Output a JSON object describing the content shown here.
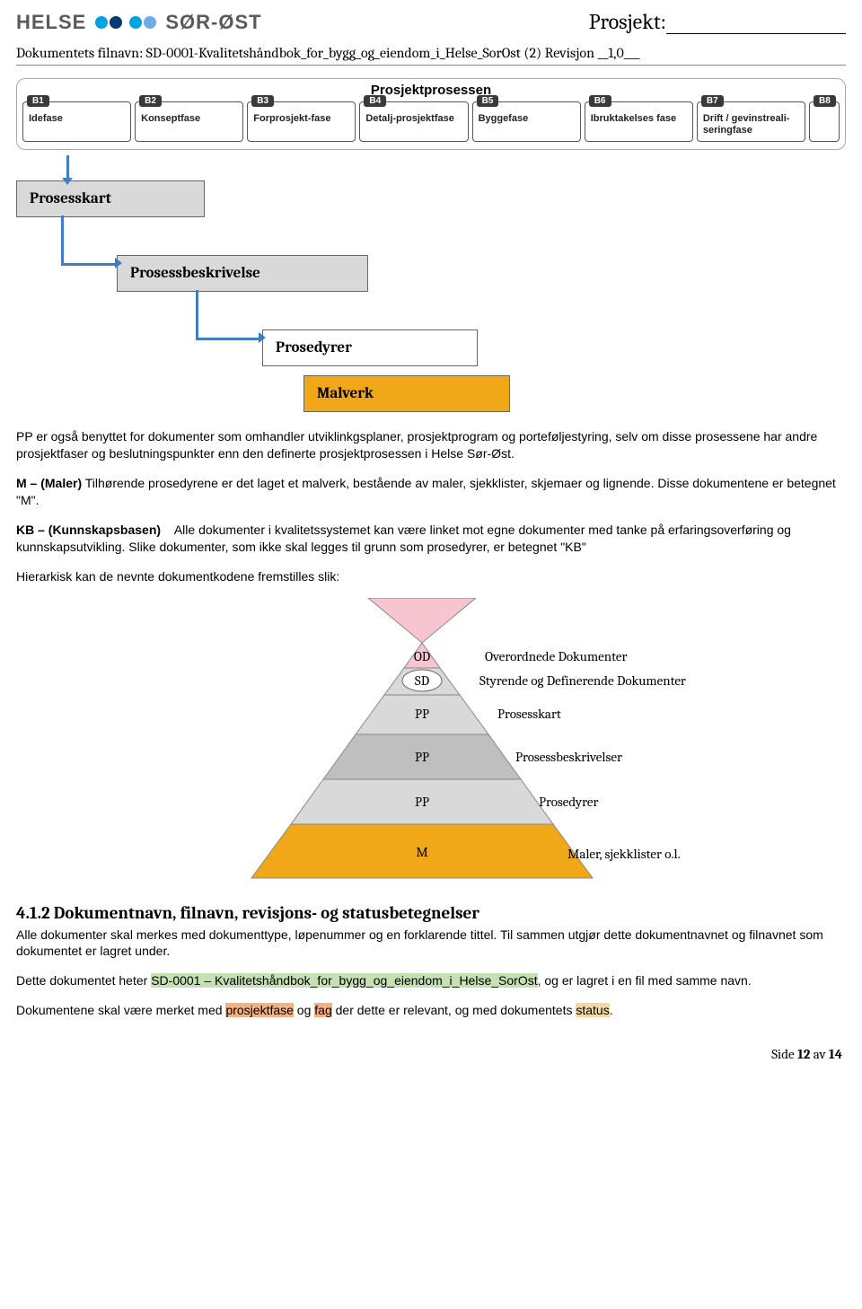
{
  "header": {
    "logo_left": "HELSE",
    "logo_right": "SØR-ØST",
    "dot_colors": [
      "#00a3e0",
      "#003a70",
      "#00a3e0",
      "#6cace4"
    ],
    "prosjekt_label": "Prosjekt:",
    "filnavn": "Dokumentets filnavn: SD-0001-Kvalitetshåndbok_for_bygg_og_eiendom_i_Helse_SorOst (2) Revisjon __1,0___"
  },
  "process": {
    "title": "Prosjektprosessen",
    "phases": [
      {
        "code": "B1",
        "label": "Idefase"
      },
      {
        "code": "B2",
        "label": "Konseptfase"
      },
      {
        "code": "B3",
        "label": "Forprosjekt-fase"
      },
      {
        "code": "B4",
        "label": "Detalj-prosjektfase"
      },
      {
        "code": "B5",
        "label": "Byggefase"
      },
      {
        "code": "B6",
        "label": "Ibruktakelses fase"
      },
      {
        "code": "B7",
        "label": "Drift / gevinstreali-seringfase"
      },
      {
        "code": "B8",
        "label": ""
      }
    ],
    "boxes": {
      "prosesskart": "Prosesskart",
      "prosessbeskrivelse": "Prosessbeskrivelse",
      "prosedyrer": "Prosedyrer",
      "malverk": "Malverk"
    }
  },
  "body": {
    "p_pp": "PP er også benyttet for dokumenter som omhandler utviklinkgsplaner, prosjektprogram og porteføljestyring, selv om disse prosessene har andre prosjektfaser og beslutningspunkter enn den definerte prosjektprosessen i Helse Sør-Øst.",
    "p_m_label": "M – (Maler)",
    "p_m": " Tilhørende prosedyrene er det laget et malverk, bestående av maler, sjekklister, skjemaer og lignende. Disse dokumentene er betegnet \"M\".",
    "p_kb_label": "KB – (Kunnskapsbasen)",
    "p_kb": "    Alle dokumenter i kvalitetssystemet kan være linket mot egne dokumenter med tanke på erfaringsoverføring og kunnskapsutvikling. Slike dokumenter, som ikke skal legges til grunn som prosedyrer, er betegnet \"KB\"",
    "p_hier": "Hierarkisk kan de nevnte dokumentkodene fremstilles slik:"
  },
  "pyramid": {
    "levels": [
      {
        "code": "OD",
        "label": "Overordnede Dokumenter",
        "fill": "#f6c5d0"
      },
      {
        "code": "SD",
        "label": "Styrende og Definerende Dokumenter",
        "fill": "#d9d9d9",
        "pill": true
      },
      {
        "code": "PP",
        "label": "Prosesskart",
        "fill": "#d9d9d9"
      },
      {
        "code": "PP",
        "label": "Prosessbeskrivelser",
        "fill": "#bfbfbf"
      },
      {
        "code": "PP",
        "label": "Prosedyrer",
        "fill": "#d9d9d9"
      },
      {
        "code": "M",
        "label": "Maler, sjekklister o.l.",
        "fill": "#f0a818"
      }
    ],
    "top_inverted_fill": "#f6c5d0"
  },
  "section": {
    "heading": "4.1.2   Dokumentnavn,  filnavn, revisjons- og statusbetegnelser",
    "p1": "Alle dokumenter skal merkes med dokumenttype, løpenummer og en forklarende tittel. Til sammen utgjør dette dokumentnavnet og filnavnet som dokumentet er lagret under.",
    "p2_a": "Dette dokumentet heter ",
    "p2_hl": "SD-0001 – Kvalitetshåndbok_for_bygg_og_eiendom_i_Helse_SorOst",
    "p2_b": ", og er lagret i en fil med samme navn.",
    "p3_a": "Dokumentene skal være merket med ",
    "p3_hl1": "prosjektfase",
    "p3_mid": " og ",
    "p3_hl2": "fag",
    "p3_b": " der dette er relevant, og med dokumentets ",
    "p3_hl3": "status",
    "p3_end": "."
  },
  "footer": {
    "text_a": "Side ",
    "num": "12",
    "text_b": " av ",
    "total": "14"
  }
}
